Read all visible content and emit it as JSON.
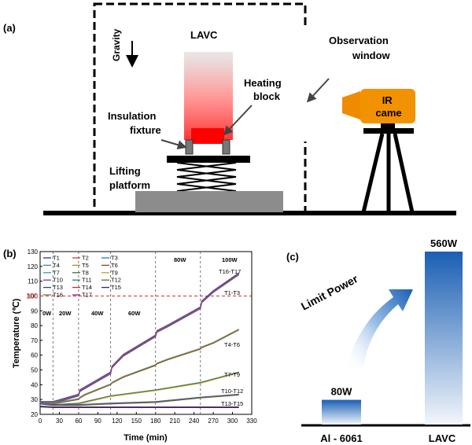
{
  "panel_a": {
    "label": "(a)",
    "gravity": "Gravity",
    "lavc": "LAVC",
    "heating_block": [
      "Heating",
      "block"
    ],
    "insulation_fixture": [
      "Insulation",
      "fixture"
    ],
    "lifting_platform": [
      "Lifting",
      "platform"
    ],
    "observation_window": [
      "Observation",
      "window"
    ],
    "ir_camera": [
      "IR",
      "came"
    ]
  },
  "panel_b": {
    "label": "(b)",
    "legend": [
      {
        "name": "T1",
        "color": "#2b2b9a"
      },
      {
        "name": "T2",
        "color": "#d23a3a"
      },
      {
        "name": "T3",
        "color": "#2e6fc9"
      },
      {
        "name": "T4",
        "color": "#3a8a9a"
      },
      {
        "name": "T5",
        "color": "#9a9a2a"
      },
      {
        "name": "T6",
        "color": "#8a4a2a"
      },
      {
        "name": "T7",
        "color": "#3a9aa8"
      },
      {
        "name": "T8",
        "color": "#4a6a3a"
      },
      {
        "name": "T9",
        "color": "#c8a020"
      },
      {
        "name": "T10",
        "color": "#7a3a9a"
      },
      {
        "name": "T11",
        "color": "#2a7a7a"
      },
      {
        "name": "T12",
        "color": "#6a6a2a"
      },
      {
        "name": "T13",
        "color": "#1a4a8a"
      },
      {
        "name": "T14",
        "color": "#c03030"
      },
      {
        "name": "T15",
        "color": "#2a2a7a"
      },
      {
        "name": "T16",
        "color": "#4a8a4a"
      },
      {
        "name": "T17",
        "color": "#8a2a8a"
      }
    ],
    "stage_labels": [
      "0W",
      "20W",
      "40W",
      "60W",
      "80W",
      "100W"
    ],
    "group_labels": [
      "T16-T17",
      "T1-T3",
      "T4-T6",
      "T7-T9",
      "T10-T12",
      "T13-T15"
    ],
    "limit_value": "100"
  },
  "panel_c": {
    "label": "(c)",
    "limit_power": "Limit Power",
    "bars": [
      {
        "name": "Al - 6061",
        "value": 80,
        "value_label": "80W"
      },
      {
        "name": "LAVC",
        "value": 560,
        "value_label": "560W"
      }
    ]
  },
  "chart_data": {
    "type": "line",
    "title": "",
    "xlabel": "Time (min)",
    "ylabel": "Temperature (℃)",
    "xlim": [
      0,
      330
    ],
    "ylim": [
      20,
      130
    ],
    "xticks": [
      0,
      30,
      60,
      90,
      120,
      150,
      180,
      210,
      240,
      270,
      300,
      330
    ],
    "yticks": [
      20,
      30,
      40,
      50,
      60,
      70,
      80,
      90,
      100,
      110,
      120,
      130
    ],
    "stage_boundaries": [
      20,
      60,
      110,
      180,
      250
    ],
    "limit_line": 100,
    "series": [
      {
        "name": "T1-T3 / T16-T17",
        "x": [
          0,
          20,
          60,
          62,
          70,
          110,
          112,
          130,
          180,
          182,
          200,
          250,
          252,
          270,
          310
        ],
        "y": [
          28,
          28,
          33,
          36,
          38,
          48,
          52,
          60,
          73,
          76,
          80,
          92,
          96,
          103,
          115
        ]
      },
      {
        "name": "T4-T6",
        "x": [
          0,
          20,
          60,
          62,
          70,
          110,
          112,
          130,
          180,
          182,
          200,
          250,
          252,
          270,
          310
        ],
        "y": [
          27,
          27,
          30,
          31,
          33,
          40,
          41,
          45,
          53,
          54,
          57,
          64,
          65,
          68,
          77
        ]
      },
      {
        "name": "T7-T9",
        "x": [
          0,
          20,
          60,
          110,
          180,
          250,
          310
        ],
        "y": [
          27,
          26,
          27,
          32,
          36,
          41,
          48
        ]
      },
      {
        "name": "T10-T12",
        "x": [
          0,
          20,
          60,
          110,
          180,
          250,
          310
        ],
        "y": [
          27,
          26,
          26,
          27,
          28,
          31,
          33
        ]
      },
      {
        "name": "T13-T15",
        "x": [
          0,
          20,
          60,
          110,
          180,
          250,
          310
        ],
        "y": [
          25,
          24.5,
          24.5,
          24.5,
          24.5,
          24.5,
          24.5
        ]
      }
    ]
  }
}
